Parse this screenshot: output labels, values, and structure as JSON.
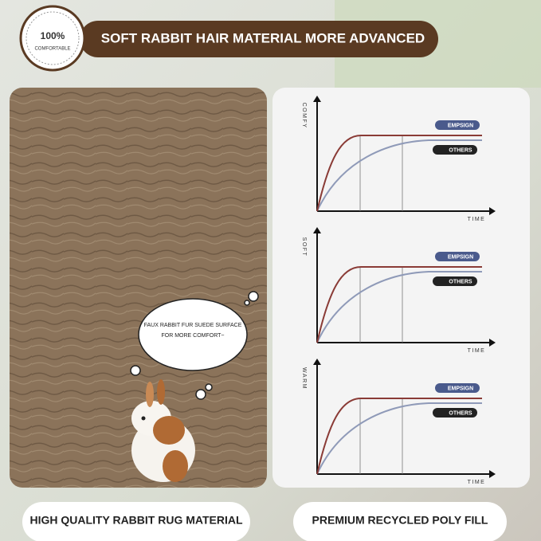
{
  "badge": {
    "percent": "100%",
    "label": "COMFORTABLE"
  },
  "header": {
    "title": "SOFT RABBIT HAIR MATERIAL MORE ADVANCED"
  },
  "callout": {
    "lines": [
      "FAUX RABBIT FUR SUEDE SURFACE",
      "FOR MORE COMFORT~"
    ]
  },
  "comparisons": [
    {
      "y_label": "COMFY",
      "x_label": "TIME",
      "legend": [
        "EMPSIGN",
        "OTHERS"
      ]
    },
    {
      "y_label": "SOFT",
      "x_label": "TIME",
      "legend": [
        "EMPSIGN",
        "OTHERS"
      ]
    },
    {
      "y_label": "WARM",
      "x_label": "TIME",
      "legend": [
        "EMPSIGN",
        "OTHERS"
      ]
    }
  ],
  "captions": [
    "HIGH QUALITY RABBIT RUG MATERIAL",
    "PREMIUM RECYCLED POLY FILL"
  ]
}
